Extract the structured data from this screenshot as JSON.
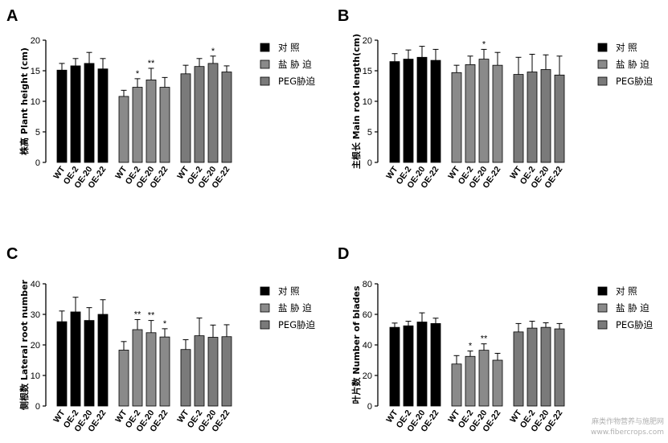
{
  "colors": {
    "control": "#000000",
    "salt": "#8a8a8a",
    "peg": "#7a7a7a",
    "axis": "#000000"
  },
  "legend": [
    "对 照",
    "盐 胁 迫",
    "PEG胁迫"
  ],
  "watermark": [
    "麻类作物营养与施肥网",
    "www.fibercrops.com"
  ],
  "chart_data": [
    {
      "panel": "A",
      "type": "bar",
      "ylabel": "株高  Plant height (cm)",
      "ylim": [
        0,
        20
      ],
      "yticks": [
        0,
        5,
        10,
        15,
        20
      ],
      "categories": [
        "WT",
        "OE-2",
        "OE-20",
        "OE-22"
      ],
      "series": [
        {
          "name": "对 照",
          "values": [
            15.1,
            15.8,
            16.2,
            15.3
          ],
          "errors": [
            1.1,
            1.2,
            1.8,
            1.7
          ],
          "sig": [
            "",
            "",
            "",
            ""
          ]
        },
        {
          "name": "盐 胁 迫",
          "values": [
            10.8,
            12.3,
            13.5,
            12.3
          ],
          "errors": [
            1.0,
            1.4,
            1.9,
            1.6
          ],
          "sig": [
            "",
            "*",
            "**",
            ""
          ]
        },
        {
          "name": "PEG胁迫",
          "values": [
            14.5,
            15.7,
            16.2,
            14.8
          ],
          "errors": [
            1.4,
            1.3,
            1.2,
            1.0
          ],
          "sig": [
            "",
            "",
            "*",
            ""
          ]
        }
      ]
    },
    {
      "panel": "B",
      "type": "bar",
      "ylabel": "主根长 Main root length(cm)",
      "ylim": [
        0,
        20
      ],
      "yticks": [
        0,
        5,
        10,
        15,
        20
      ],
      "categories": [
        "WT",
        "OE-2",
        "OE-20",
        "OE-22"
      ],
      "series": [
        {
          "name": "对 照",
          "values": [
            16.5,
            16.9,
            17.2,
            16.7
          ],
          "errors": [
            1.3,
            1.5,
            1.8,
            1.8
          ],
          "sig": [
            "",
            "",
            "",
            ""
          ]
        },
        {
          "name": "盐 胁 迫",
          "values": [
            14.7,
            16.0,
            16.9,
            15.9
          ],
          "errors": [
            1.2,
            1.4,
            1.6,
            2.1
          ],
          "sig": [
            "",
            "",
            "*",
            ""
          ]
        },
        {
          "name": "PEG胁迫",
          "values": [
            14.4,
            14.8,
            15.2,
            14.3
          ],
          "errors": [
            2.8,
            2.9,
            2.4,
            3.1
          ],
          "sig": [
            "",
            "",
            "",
            ""
          ]
        }
      ]
    },
    {
      "panel": "C",
      "type": "bar",
      "ylabel": "侧根数 Lateral root number",
      "ylim": [
        0,
        40
      ],
      "yticks": [
        0,
        10,
        20,
        30,
        40
      ],
      "categories": [
        "WT",
        "OE-2",
        "OE-20",
        "OE-22"
      ],
      "series": [
        {
          "name": "对 照",
          "values": [
            27.6,
            30.8,
            28.0,
            30.0
          ],
          "errors": [
            3.5,
            4.8,
            4.2,
            4.8
          ],
          "sig": [
            "",
            "",
            "",
            ""
          ]
        },
        {
          "name": "盐 胁 迫",
          "values": [
            18.3,
            25.0,
            24.0,
            22.6
          ],
          "errors": [
            2.8,
            3.3,
            4.0,
            2.7
          ],
          "sig": [
            "",
            "**",
            "**",
            "*"
          ]
        },
        {
          "name": "PEG胁迫",
          "values": [
            18.5,
            23.0,
            22.5,
            22.7
          ],
          "errors": [
            3.2,
            5.8,
            4.0,
            3.9
          ],
          "sig": [
            "",
            "",
            "",
            ""
          ]
        }
      ]
    },
    {
      "panel": "D",
      "type": "bar",
      "ylabel": "叶片数 Number of blades",
      "ylim": [
        0,
        80
      ],
      "yticks": [
        0,
        20,
        40,
        60,
        80
      ],
      "categories": [
        "WT",
        "OE-2",
        "OE-20",
        "OE-22"
      ],
      "series": [
        {
          "name": "对 照",
          "values": [
            51.5,
            52.5,
            55.0,
            54.0
          ],
          "errors": [
            2.8,
            3.0,
            6.0,
            3.5
          ],
          "sig": [
            "",
            "",
            "",
            ""
          ]
        },
        {
          "name": "盐 胁 迫",
          "values": [
            27.5,
            32.5,
            36.5,
            30.0
          ],
          "errors": [
            5.5,
            3.5,
            4.2,
            4.5
          ],
          "sig": [
            "",
            "*",
            "**",
            ""
          ]
        },
        {
          "name": "PEG胁迫",
          "values": [
            48.5,
            51.0,
            51.5,
            50.5
          ],
          "errors": [
            5.5,
            4.5,
            3.0,
            3.5
          ],
          "sig": [
            "",
            "",
            "",
            ""
          ]
        }
      ]
    }
  ]
}
